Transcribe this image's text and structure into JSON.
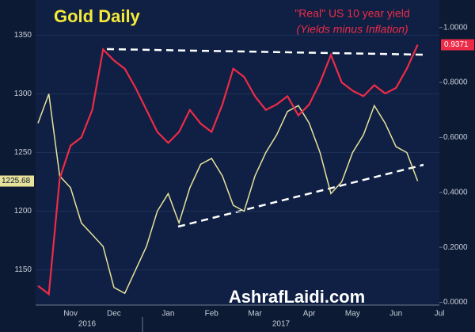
{
  "chart_data": {
    "type": "line",
    "title": "Gold Daily",
    "annotations": [
      "\"Real\" US 10 year yield",
      "(Yields minus Inflation)",
      "AshrafLaidi.com"
    ],
    "years": [
      "2016",
      "2017"
    ],
    "categories": [
      null,
      null,
      null,
      "Nov",
      null,
      null,
      null,
      "Dec",
      null,
      null,
      null,
      null,
      "Jan",
      null,
      null,
      null,
      "Feb",
      null,
      null,
      null,
      "Mar",
      null,
      null,
      null,
      null,
      "Apr",
      null,
      null,
      null,
      "May",
      null,
      null,
      null,
      "Jun",
      null,
      null,
      null,
      "Jul"
    ],
    "series": [
      {
        "name": "Gold",
        "color": "#e8e29a",
        "values": [
          1275,
          1300,
          1230,
          1220,
          1190,
          1180,
          1170,
          1135,
          1130,
          1150,
          1170,
          1200,
          1215,
          1190,
          1220,
          1240,
          1245,
          1230,
          1205,
          1200,
          1230,
          1250,
          1265,
          1285,
          1290,
          1275,
          1250,
          1215,
          1225,
          1250,
          1265,
          1290,
          1275,
          1255,
          1250,
          1225.68,
          null,
          null
        ],
        "last_label": "1225.68"
      },
      {
        "name": "\"Real\" US 10 year yield",
        "color": "#ee2b47",
        "axis": "y2",
        "values": [
          0.06,
          0.03,
          0.45,
          0.57,
          0.6,
          0.7,
          0.92,
          0.88,
          0.85,
          0.78,
          0.7,
          0.62,
          0.58,
          0.62,
          0.7,
          0.65,
          0.62,
          0.72,
          0.85,
          0.82,
          0.75,
          0.7,
          0.72,
          0.75,
          0.68,
          0.72,
          0.8,
          0.9,
          0.8,
          0.77,
          0.75,
          0.79,
          0.76,
          0.78,
          0.85,
          0.9371,
          null,
          null
        ],
        "last_label": "0.9371"
      }
    ],
    "ylim": [
      1120,
      1380
    ],
    "yticks": [
      1150,
      1200,
      1250,
      1300,
      1350
    ],
    "y2lim": [
      -0.01,
      1.1
    ],
    "y2ticks": [
      {
        "value": 0,
        "label": "0.0000"
      },
      {
        "value": 0.2,
        "label": "0.2000"
      },
      {
        "value": 0.4,
        "label": "0.4000"
      },
      {
        "value": 0.6,
        "label": "0.6000"
      },
      {
        "value": 0.8,
        "label": "0.8000"
      },
      {
        "value": 1,
        "label": "1.0000"
      }
    ],
    "grid": true
  }
}
